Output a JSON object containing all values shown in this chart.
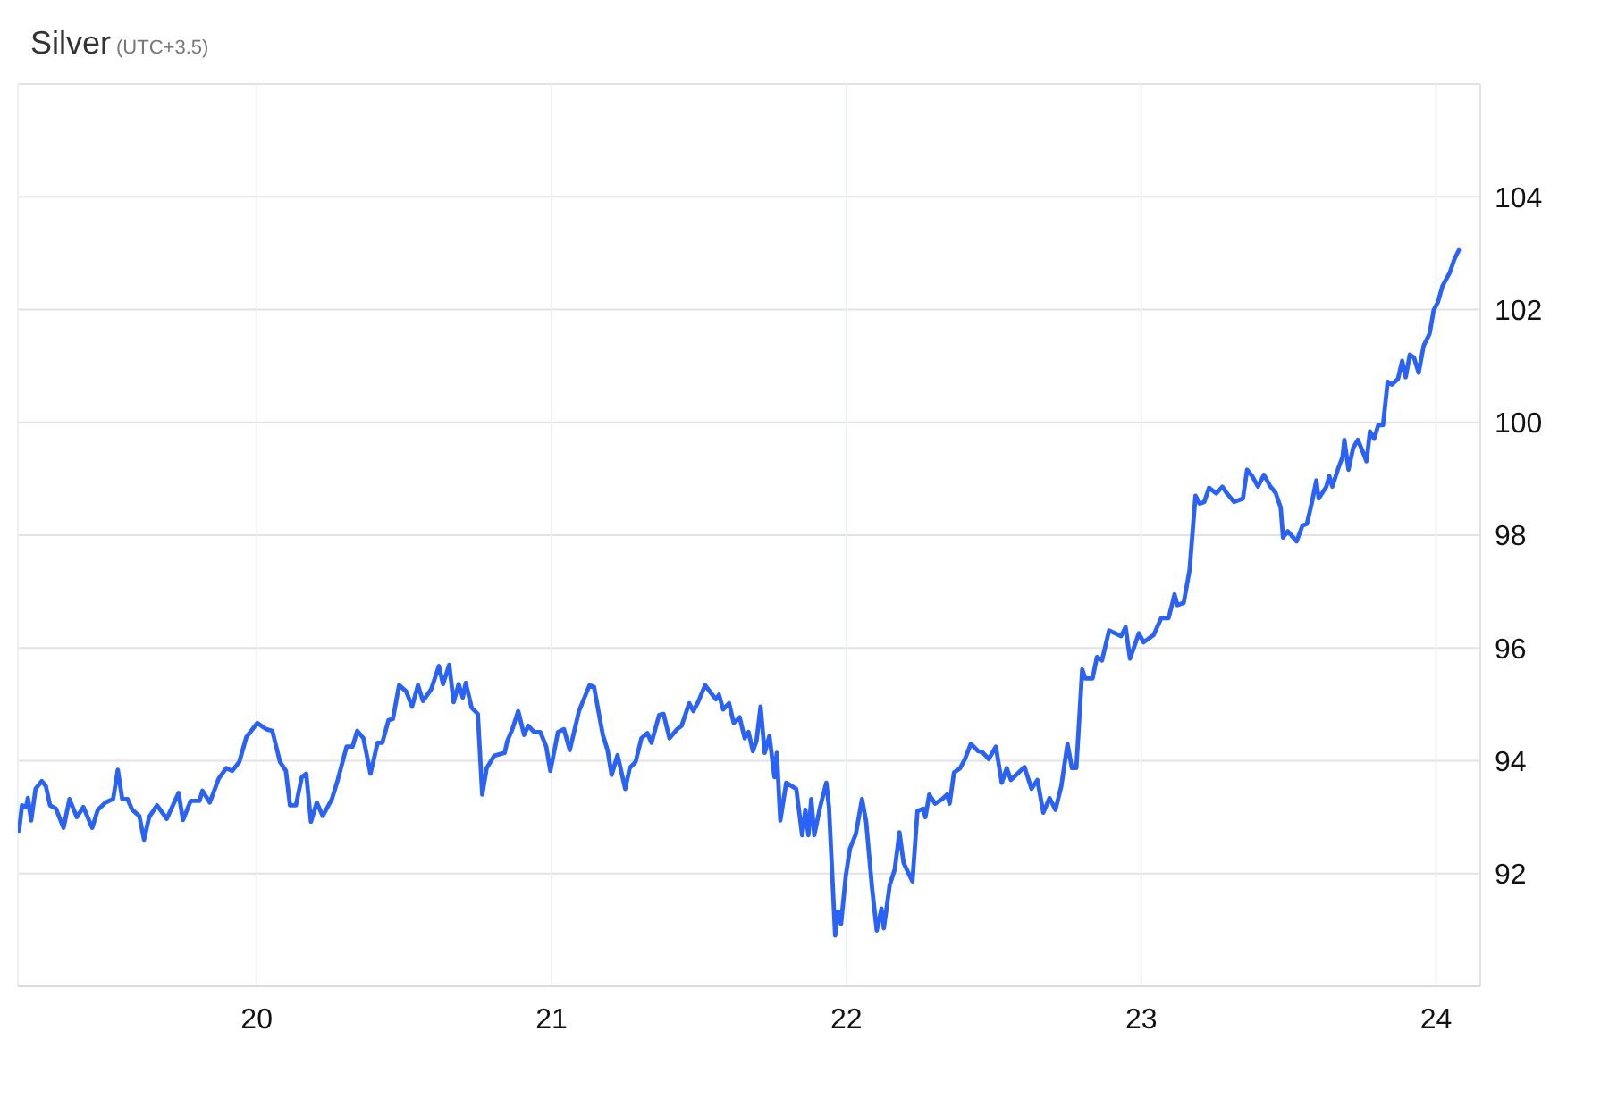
{
  "chart_data": {
    "type": "line",
    "title": "Silver",
    "subtitle": "(UTC+3.5)",
    "color": "#2962f4",
    "marker": "none",
    "grid": true,
    "xlim": [
      19.19,
      24.15
    ],
    "xticks": [
      20,
      21,
      22,
      23,
      24
    ],
    "ylim": [
      90,
      106
    ],
    "yticks": [
      {
        "value": 90,
        "label": null
      },
      92,
      94,
      96,
      98,
      100,
      102,
      104,
      {
        "value": 106,
        "label": null
      }
    ],
    "x": [
      19.194,
      19.204,
      19.218,
      19.224,
      19.235,
      19.25,
      19.271,
      19.285,
      19.299,
      19.319,
      19.345,
      19.365,
      19.39,
      19.412,
      19.442,
      19.461,
      19.487,
      19.513,
      19.529,
      19.544,
      19.562,
      19.578,
      19.602,
      19.618,
      19.635,
      19.662,
      19.695,
      19.735,
      19.75,
      19.776,
      19.806,
      19.816,
      19.841,
      19.871,
      19.897,
      19.917,
      19.941,
      19.965,
      20.002,
      20.032,
      20.053,
      20.079,
      20.099,
      20.113,
      20.133,
      20.153,
      20.168,
      20.184,
      20.204,
      20.224,
      20.255,
      20.275,
      20.305,
      20.325,
      20.341,
      20.362,
      20.386,
      20.41,
      20.426,
      20.447,
      20.462,
      20.483,
      20.507,
      20.527,
      20.547,
      20.564,
      20.592,
      20.618,
      20.632,
      20.653,
      20.668,
      20.685,
      20.699,
      20.709,
      20.729,
      20.75,
      20.765,
      20.78,
      20.806,
      20.841,
      20.85,
      20.867,
      20.887,
      20.907,
      20.921,
      20.941,
      20.962,
      20.982,
      20.996,
      21.022,
      21.042,
      21.062,
      21.093,
      21.129,
      21.144,
      21.174,
      21.19,
      21.204,
      21.224,
      21.25,
      21.265,
      21.285,
      21.305,
      21.325,
      21.339,
      21.365,
      21.38,
      21.4,
      21.426,
      21.441,
      21.467,
      21.481,
      21.497,
      21.521,
      21.541,
      21.558,
      21.568,
      21.582,
      21.602,
      21.618,
      21.638,
      21.655,
      21.668,
      21.683,
      21.695,
      21.709,
      21.723,
      21.739,
      21.756,
      21.764,
      21.776,
      21.796,
      21.83,
      21.85,
      21.861,
      21.871,
      21.881,
      21.891,
      21.911,
      21.932,
      21.941,
      21.962,
      21.972,
      21.982,
      21.998,
      22.012,
      22.032,
      22.053,
      22.067,
      22.087,
      22.103,
      22.119,
      22.127,
      22.147,
      22.164,
      22.18,
      22.194,
      22.224,
      22.241,
      22.261,
      22.268,
      22.281,
      22.301,
      22.325,
      22.341,
      22.35,
      22.365,
      22.386,
      22.402,
      22.422,
      22.447,
      22.462,
      22.483,
      22.507,
      22.527,
      22.544,
      22.558,
      22.604,
      22.628,
      22.648,
      22.668,
      22.689,
      22.709,
      22.729,
      22.75,
      22.765,
      22.78,
      22.8,
      22.81,
      22.835,
      22.85,
      22.867,
      22.891,
      22.932,
      22.947,
      22.962,
      22.992,
      23.008,
      23.042,
      23.068,
      23.093,
      23.113,
      23.123,
      23.144,
      23.164,
      23.184,
      23.198,
      23.214,
      23.23,
      23.255,
      23.275,
      23.291,
      23.315,
      23.345,
      23.359,
      23.376,
      23.396,
      23.416,
      23.436,
      23.456,
      23.473,
      23.481,
      23.497,
      23.527,
      23.547,
      23.562,
      23.578,
      23.594,
      23.602,
      23.628,
      23.638,
      23.648,
      23.668,
      23.683,
      23.689,
      23.703,
      23.719,
      23.735,
      23.75,
      23.764,
      23.776,
      23.79,
      23.804,
      23.82,
      23.836,
      23.85,
      23.871,
      23.885,
      23.897,
      23.911,
      23.925,
      23.941,
      23.958,
      23.978,
      23.992,
      24.006,
      24.022,
      24.047,
      24.062,
      24.077
    ],
    "values": [
      92.76,
      93.21,
      93.18,
      93.34,
      92.94,
      93.5,
      93.64,
      93.55,
      93.21,
      93.15,
      92.81,
      93.32,
      93.0,
      93.18,
      92.81,
      93.13,
      93.26,
      93.32,
      93.84,
      93.32,
      93.32,
      93.13,
      93.02,
      92.6,
      93.0,
      93.21,
      92.97,
      93.43,
      92.95,
      93.29,
      93.29,
      93.47,
      93.26,
      93.68,
      93.87,
      93.82,
      93.98,
      94.42,
      94.67,
      94.56,
      94.53,
      93.98,
      93.82,
      93.21,
      93.21,
      93.71,
      93.77,
      92.92,
      93.26,
      93.02,
      93.32,
      93.66,
      94.25,
      94.25,
      94.53,
      94.4,
      93.77,
      94.32,
      94.32,
      94.72,
      94.74,
      95.34,
      95.23,
      94.96,
      95.34,
      95.06,
      95.27,
      95.68,
      95.36,
      95.7,
      95.04,
      95.36,
      95.12,
      95.38,
      94.94,
      94.83,
      93.4,
      93.87,
      94.09,
      94.14,
      94.35,
      94.56,
      94.88,
      94.46,
      94.62,
      94.51,
      94.51,
      94.25,
      93.82,
      94.51,
      94.56,
      94.19,
      94.88,
      95.34,
      95.31,
      94.46,
      94.19,
      93.75,
      94.1,
      93.5,
      93.87,
      93.98,
      94.4,
      94.49,
      94.32,
      94.81,
      94.83,
      94.4,
      94.56,
      94.62,
      95.02,
      94.88,
      95.04,
      95.34,
      95.2,
      95.09,
      95.17,
      94.91,
      95.02,
      94.67,
      94.77,
      94.4,
      94.51,
      94.17,
      94.35,
      94.96,
      94.14,
      94.44,
      93.71,
      94.14,
      92.94,
      93.61,
      93.5,
      92.68,
      93.13,
      92.68,
      93.32,
      92.68,
      93.18,
      93.61,
      93.18,
      90.9,
      91.33,
      91.11,
      91.96,
      92.44,
      92.7,
      93.32,
      92.92,
      91.75,
      90.99,
      91.38,
      91.03,
      91.8,
      92.07,
      92.73,
      92.19,
      91.86,
      93.11,
      93.15,
      93.0,
      93.4,
      93.24,
      93.32,
      93.4,
      93.24,
      93.79,
      93.87,
      94.03,
      94.3,
      94.17,
      94.15,
      94.03,
      94.25,
      93.61,
      93.87,
      93.66,
      93.89,
      93.5,
      93.66,
      93.08,
      93.34,
      93.13,
      93.55,
      94.3,
      93.87,
      93.87,
      95.62,
      95.46,
      95.46,
      95.84,
      95.78,
      96.31,
      96.21,
      96.37,
      95.81,
      96.26,
      96.1,
      96.23,
      96.53,
      96.53,
      96.95,
      96.76,
      96.8,
      97.38,
      98.7,
      98.56,
      98.59,
      98.84,
      98.74,
      98.86,
      98.74,
      98.59,
      98.65,
      99.16,
      99.05,
      98.86,
      99.07,
      98.88,
      98.75,
      98.49,
      97.96,
      98.07,
      97.89,
      98.17,
      98.2,
      98.56,
      98.97,
      98.65,
      98.86,
      99.05,
      98.86,
      99.18,
      99.39,
      99.69,
      99.16,
      99.55,
      99.69,
      99.5,
      99.31,
      99.84,
      99.71,
      99.95,
      99.95,
      100.72,
      100.67,
      100.77,
      101.09,
      100.8,
      101.2,
      101.15,
      100.88,
      101.36,
      101.57,
      101.99,
      102.13,
      102.42,
      102.66,
      102.89,
      103.05
    ]
  }
}
